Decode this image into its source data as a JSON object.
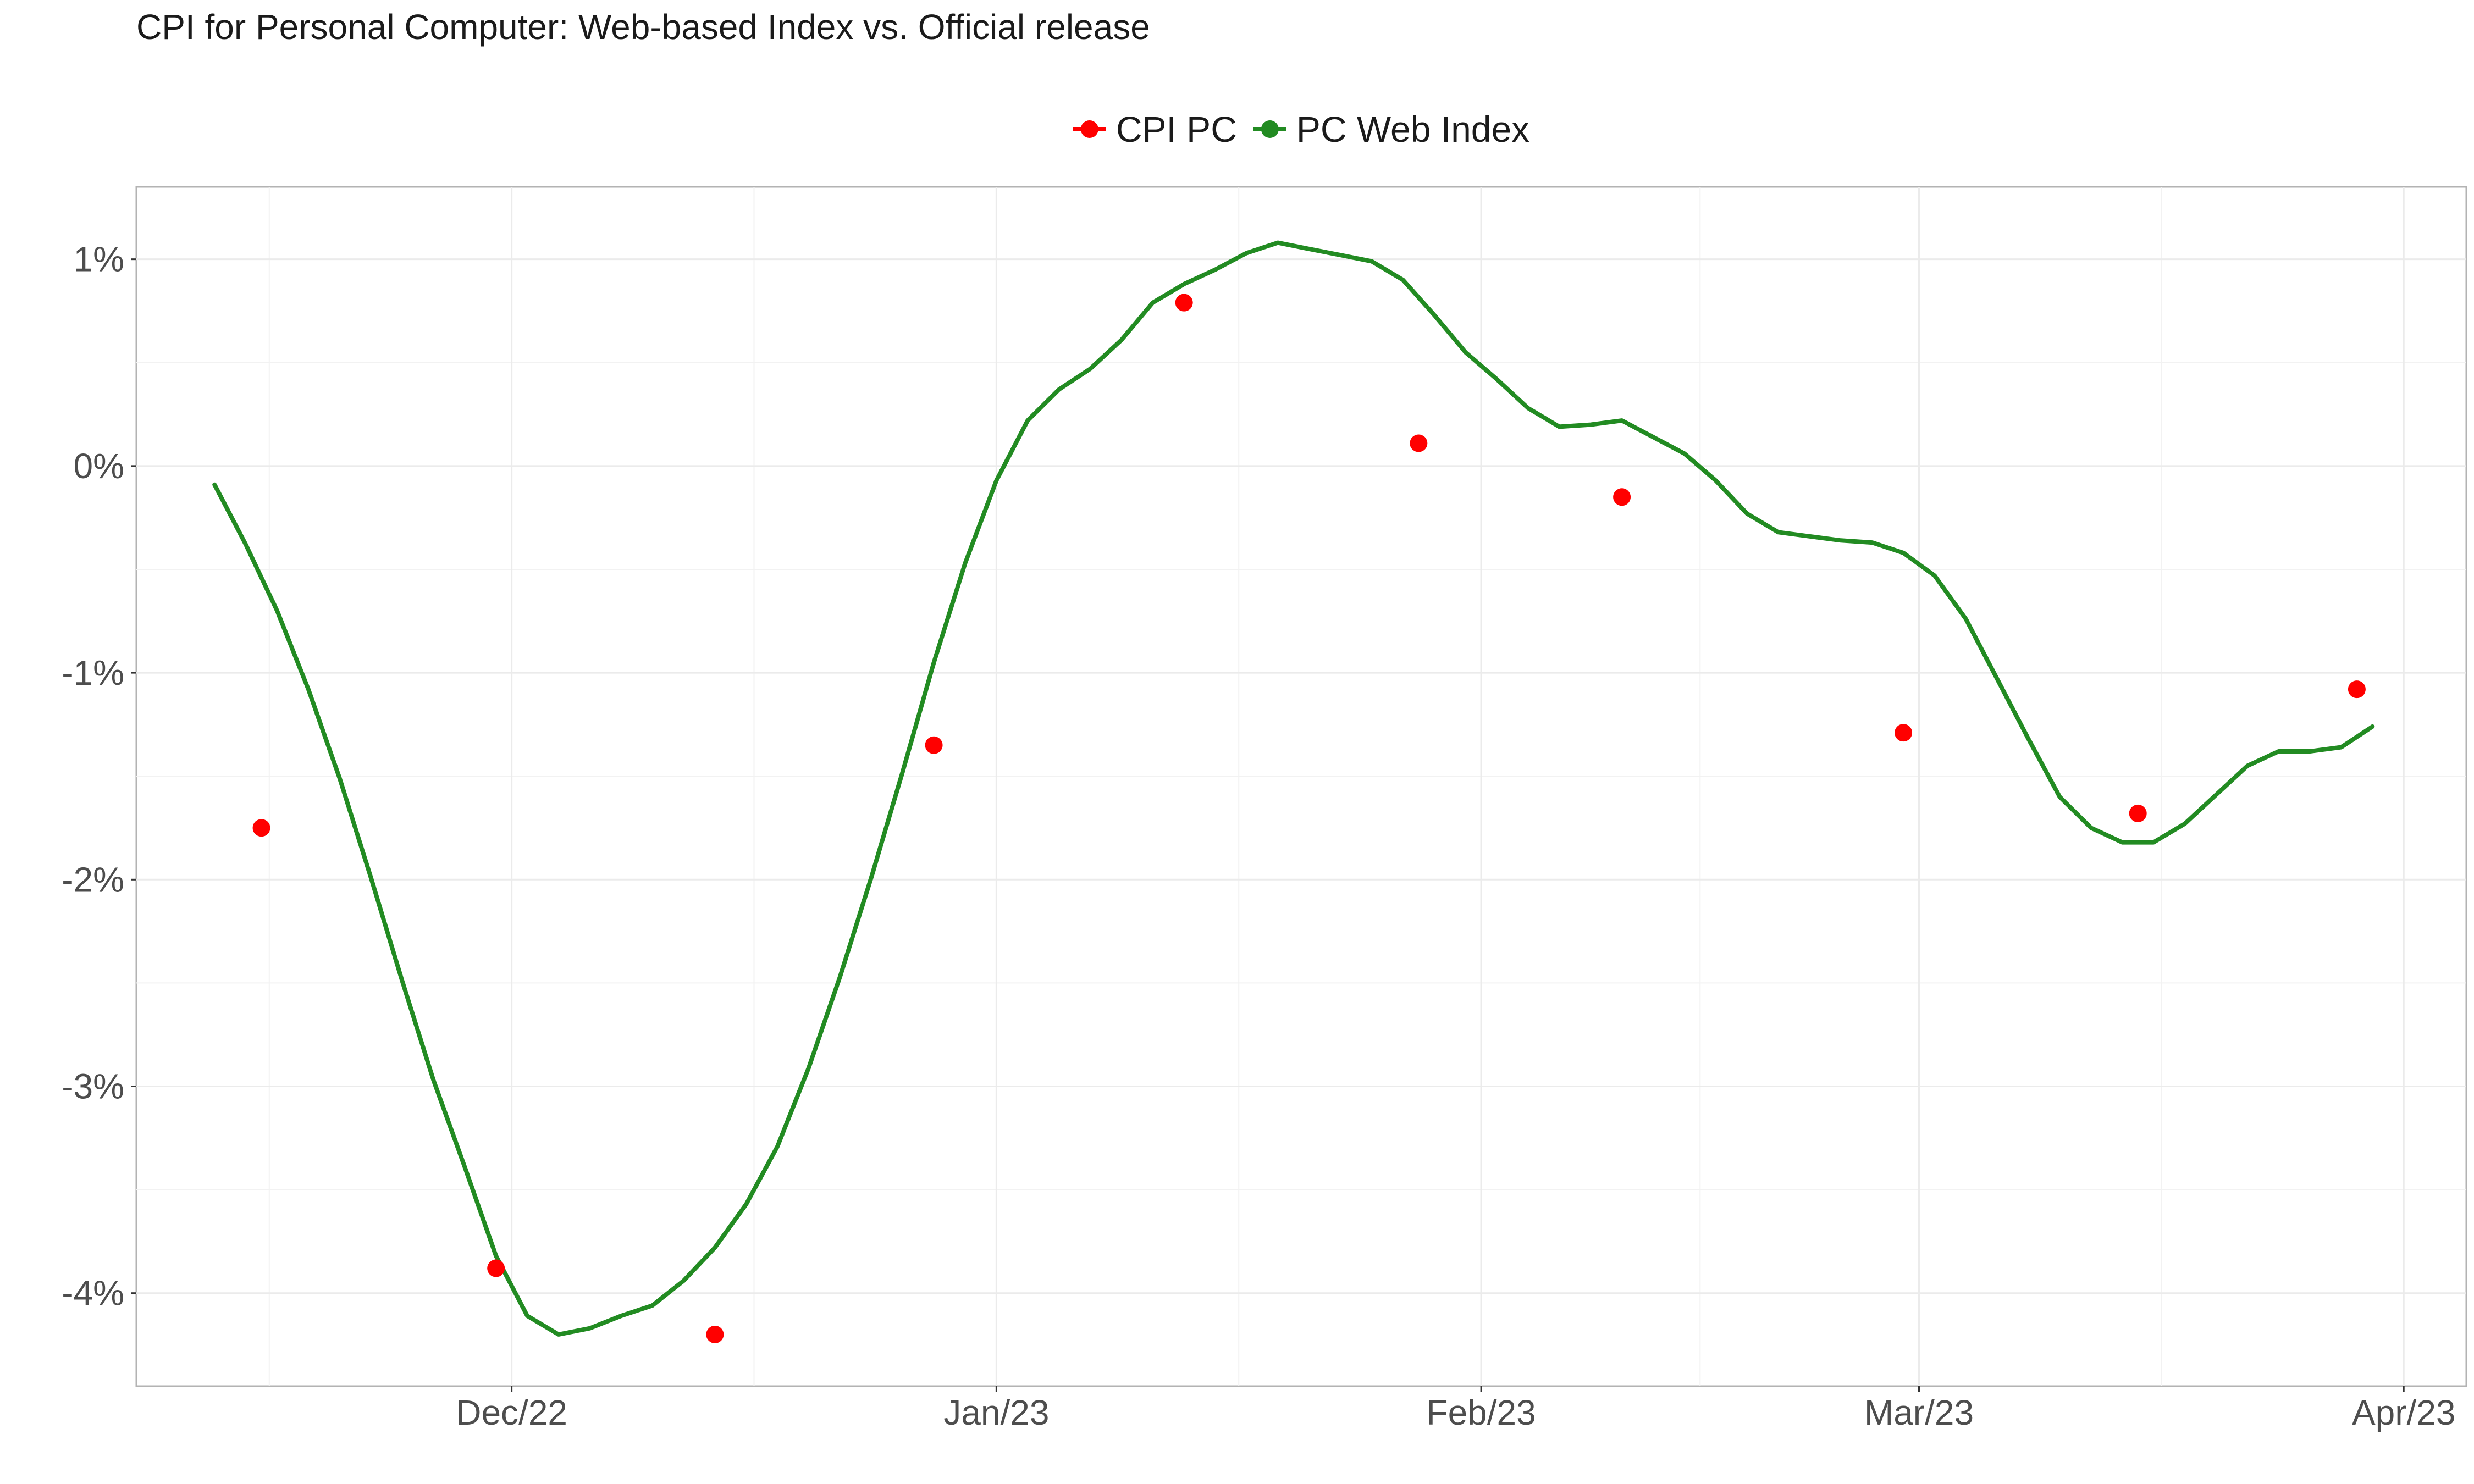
{
  "chart_data": {
    "type": "line",
    "title": "CPI for Personal Computer: Web-based Index vs. Official release",
    "xlabel": "",
    "ylabel": "",
    "x_axis": {
      "type": "date",
      "range": [
        "2022-11-07",
        "2023-04-05"
      ],
      "ticks": [
        {
          "date": "2022-12-01",
          "label": "Dec/22"
        },
        {
          "date": "2023-01-01",
          "label": "Jan/23"
        },
        {
          "date": "2023-02-01",
          "label": "Feb/23"
        },
        {
          "date": "2023-03-01",
          "label": "Mar/23"
        },
        {
          "date": "2023-04-01",
          "label": "Apr/23"
        }
      ]
    },
    "y_axis": {
      "range": [
        -4.45,
        1.35
      ],
      "ticks": [
        {
          "value": 1,
          "label": "1%"
        },
        {
          "value": 0,
          "label": "0%"
        },
        {
          "value": -1,
          "label": "-1%"
        },
        {
          "value": -2,
          "label": "-2%"
        },
        {
          "value": -3,
          "label": "-3%"
        },
        {
          "value": -4,
          "label": "-4%"
        }
      ]
    },
    "grid": true,
    "legend": {
      "position": "top",
      "entries": [
        {
          "label": "CPI PC",
          "color": "#ff0000",
          "style": "point"
        },
        {
          "label": "PC Web Index",
          "color": "#228b22",
          "style": "line"
        }
      ]
    },
    "series": [
      {
        "name": "CPI PC",
        "type": "scatter",
        "color": "#ff0000",
        "points": [
          {
            "x": "2022-11-15",
            "y": -1.75
          },
          {
            "x": "2022-11-30",
            "y": -3.88
          },
          {
            "x": "2022-12-14",
            "y": -4.2
          },
          {
            "x": "2022-12-28",
            "y": -1.35
          },
          {
            "x": "2023-01-13",
            "y": 0.79
          },
          {
            "x": "2023-01-28",
            "y": 0.11
          },
          {
            "x": "2023-02-10",
            "y": -0.15
          },
          {
            "x": "2023-02-28",
            "y": -1.29
          },
          {
            "x": "2023-03-15",
            "y": -1.68
          },
          {
            "x": "2023-03-29",
            "y": -1.08
          }
        ]
      },
      {
        "name": "PC Web Index",
        "type": "line",
        "color": "#228b22",
        "points": [
          {
            "x": "2022-11-12",
            "y": -0.09
          },
          {
            "x": "2022-11-14",
            "y": -0.38
          },
          {
            "x": "2022-11-16",
            "y": -0.7
          },
          {
            "x": "2022-11-18",
            "y": -1.08
          },
          {
            "x": "2022-11-20",
            "y": -1.51
          },
          {
            "x": "2022-11-22",
            "y": -1.99
          },
          {
            "x": "2022-11-24",
            "y": -2.49
          },
          {
            "x": "2022-11-26",
            "y": -2.97
          },
          {
            "x": "2022-11-28",
            "y": -3.39
          },
          {
            "x": "2022-11-30",
            "y": -3.82
          },
          {
            "x": "2022-12-02",
            "y": -4.11
          },
          {
            "x": "2022-12-04",
            "y": -4.2
          },
          {
            "x": "2022-12-06",
            "y": -4.17
          },
          {
            "x": "2022-12-08",
            "y": -4.11
          },
          {
            "x": "2022-12-10",
            "y": -4.06
          },
          {
            "x": "2022-12-12",
            "y": -3.94
          },
          {
            "x": "2022-12-14",
            "y": -3.78
          },
          {
            "x": "2022-12-16",
            "y": -3.57
          },
          {
            "x": "2022-12-18",
            "y": -3.29
          },
          {
            "x": "2022-12-20",
            "y": -2.91
          },
          {
            "x": "2022-12-22",
            "y": -2.47
          },
          {
            "x": "2022-12-24",
            "y": -1.99
          },
          {
            "x": "2022-12-26",
            "y": -1.48
          },
          {
            "x": "2022-12-28",
            "y": -0.95
          },
          {
            "x": "2022-12-30",
            "y": -0.47
          },
          {
            "x": "2023-01-01",
            "y": -0.07
          },
          {
            "x": "2023-01-03",
            "y": 0.22
          },
          {
            "x": "2023-01-05",
            "y": 0.37
          },
          {
            "x": "2023-01-07",
            "y": 0.47
          },
          {
            "x": "2023-01-09",
            "y": 0.61
          },
          {
            "x": "2023-01-11",
            "y": 0.79
          },
          {
            "x": "2023-01-13",
            "y": 0.88
          },
          {
            "x": "2023-01-15",
            "y": 0.95
          },
          {
            "x": "2023-01-17",
            "y": 1.03
          },
          {
            "x": "2023-01-19",
            "y": 1.08
          },
          {
            "x": "2023-01-21",
            "y": 1.05
          },
          {
            "x": "2023-01-23",
            "y": 1.02
          },
          {
            "x": "2023-01-25",
            "y": 0.99
          },
          {
            "x": "2023-01-27",
            "y": 0.9
          },
          {
            "x": "2023-01-29",
            "y": 0.73
          },
          {
            "x": "2023-01-31",
            "y": 0.55
          },
          {
            "x": "2023-02-02",
            "y": 0.42
          },
          {
            "x": "2023-02-04",
            "y": 0.28
          },
          {
            "x": "2023-02-06",
            "y": 0.19
          },
          {
            "x": "2023-02-08",
            "y": 0.2
          },
          {
            "x": "2023-02-10",
            "y": 0.22
          },
          {
            "x": "2023-02-12",
            "y": 0.14
          },
          {
            "x": "2023-02-14",
            "y": 0.06
          },
          {
            "x": "2023-02-16",
            "y": -0.07
          },
          {
            "x": "2023-02-18",
            "y": -0.23
          },
          {
            "x": "2023-02-20",
            "y": -0.32
          },
          {
            "x": "2023-02-22",
            "y": -0.34
          },
          {
            "x": "2023-02-24",
            "y": -0.36
          },
          {
            "x": "2023-02-26",
            "y": -0.37
          },
          {
            "x": "2023-02-28",
            "y": -0.42
          },
          {
            "x": "2023-03-02",
            "y": -0.53
          },
          {
            "x": "2023-03-04",
            "y": -0.74
          },
          {
            "x": "2023-03-06",
            "y": -1.03
          },
          {
            "x": "2023-03-08",
            "y": -1.32
          },
          {
            "x": "2023-03-10",
            "y": -1.6
          },
          {
            "x": "2023-03-12",
            "y": -1.75
          },
          {
            "x": "2023-03-14",
            "y": -1.82
          },
          {
            "x": "2023-03-16",
            "y": -1.82
          },
          {
            "x": "2023-03-18",
            "y": -1.73
          },
          {
            "x": "2023-03-20",
            "y": -1.59
          },
          {
            "x": "2023-03-22",
            "y": -1.45
          },
          {
            "x": "2023-03-24",
            "y": -1.38
          },
          {
            "x": "2023-03-26",
            "y": -1.38
          },
          {
            "x": "2023-03-28",
            "y": -1.36
          },
          {
            "x": "2023-03-30",
            "y": -1.26
          }
        ]
      }
    ]
  }
}
